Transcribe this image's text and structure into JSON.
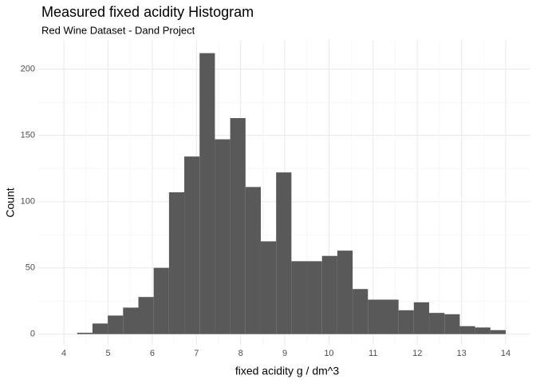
{
  "chart_data": {
    "type": "histogram",
    "title": "Measured fixed acidity Histogram",
    "subtitle": "Red Wine Dataset - Dand Project",
    "x_label": "fixed acidity g / dm^3",
    "y_label": "Count",
    "bins": [
      4.3,
      4.646,
      4.993,
      5.339,
      5.686,
      6.032,
      6.379,
      6.725,
      7.071,
      7.418,
      7.764,
      8.111,
      8.457,
      8.804,
      9.15,
      9.496,
      9.843,
      10.189,
      10.536,
      10.882,
      11.229,
      11.575,
      11.921,
      12.268,
      12.614,
      12.961,
      13.307,
      13.654,
      14.0
    ],
    "values": [
      1,
      8,
      14,
      20,
      28,
      50,
      107,
      134,
      212,
      147,
      163,
      111,
      70,
      122,
      55,
      55,
      59,
      63,
      34,
      26,
      26,
      18,
      24,
      16,
      15,
      6,
      5,
      3
    ],
    "color": "#595959",
    "xlim": [
      3.42,
      14.56
    ],
    "ylim": [
      -8,
      222
    ],
    "xticks": [
      4,
      5,
      6,
      7,
      8,
      9,
      10,
      11,
      12,
      13,
      14
    ],
    "yticks": [
      0,
      50,
      100,
      150,
      200
    ],
    "grid": true
  }
}
